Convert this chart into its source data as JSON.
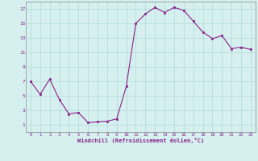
{
  "x": [
    0,
    1,
    2,
    3,
    4,
    5,
    6,
    7,
    8,
    9,
    10,
    11,
    12,
    13,
    14,
    15,
    16,
    17,
    18,
    19,
    20,
    21,
    22,
    23
  ],
  "y": [
    7,
    5.2,
    7.3,
    4.5,
    2.5,
    2.7,
    1.3,
    1.4,
    1.5,
    1.8,
    6.3,
    15.0,
    16.3,
    17.2,
    16.5,
    17.2,
    16.8,
    15.3,
    13.8,
    12.9,
    13.3,
    11.5,
    11.7,
    11.4
  ],
  "line_color": "#882288",
  "marker_color": "#882288",
  "bg_color": "#d6f0f0",
  "grid_color": "#b0d8d8",
  "xlabel": "Windchill (Refroidissement éolien,°C)",
  "yticks": [
    1,
    3,
    5,
    7,
    9,
    11,
    13,
    15,
    17
  ],
  "xticks": [
    0,
    1,
    2,
    3,
    4,
    5,
    6,
    7,
    8,
    9,
    10,
    11,
    12,
    13,
    14,
    15,
    16,
    17,
    18,
    19,
    20,
    21,
    22,
    23
  ],
  "ylim": [
    0,
    18
  ],
  "xlim": [
    -0.5,
    23.5
  ]
}
